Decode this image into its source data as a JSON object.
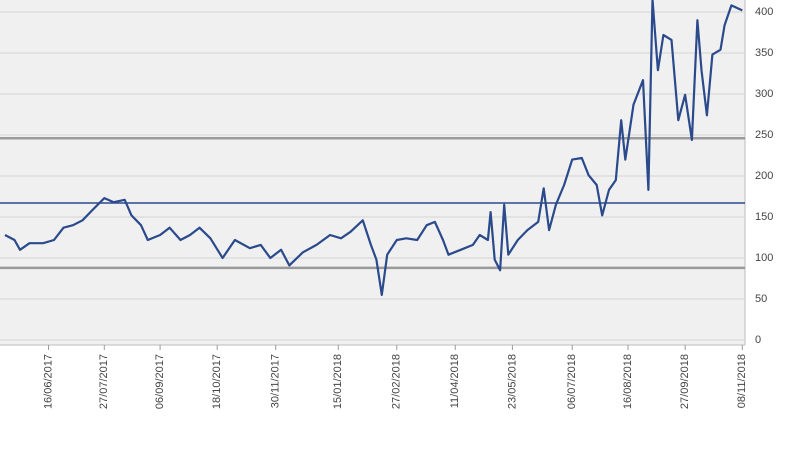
{
  "chart_data": {
    "type": "line",
    "x": [
      "15/05/2017",
      "22/05/2017",
      "26/05/2017",
      "02/06/2017",
      "12/06/2017",
      "20/06/2017",
      "27/06/2017",
      "04/07/2017",
      "11/07/2017",
      "18/07/2017",
      "27/07/2017",
      "03/08/2017",
      "11/08/2017",
      "16/08/2017",
      "23/08/2017",
      "28/08/2017",
      "06/09/2017",
      "13/09/2017",
      "21/09/2017",
      "28/09/2017",
      "05/10/2017",
      "13/10/2017",
      "22/10/2017",
      "31/10/2017",
      "11/11/2017",
      "19/11/2017",
      "26/11/2017",
      "04/12/2017",
      "10/12/2017",
      "20/12/2017",
      "30/12/2017",
      "09/01/2018",
      "17/01/2018",
      "24/01/2018",
      "02/02/2018",
      "08/02/2018",
      "12/02/2018",
      "16/02/2018",
      "20/02/2018",
      "27/02/2018",
      "06/03/2018",
      "14/03/2018",
      "21/03/2018",
      "27/03/2018",
      "02/04/2018",
      "06/04/2018",
      "15/04/2018",
      "24/04/2018",
      "29/04/2018",
      "05/05/2018",
      "07/05/2018",
      "10/05/2018",
      "14/05/2018",
      "17/05/2018",
      "20/05/2018",
      "27/05/2018",
      "03/06/2018",
      "11/06/2018",
      "15/06/2018",
      "19/06/2018",
      "24/06/2018",
      "30/06/2018",
      "06/07/2018",
      "13/07/2018",
      "18/07/2018",
      "24/07/2018",
      "28/07/2018",
      "02/08/2018",
      "07/08/2018",
      "11/08/2018",
      "14/08/2018",
      "20/08/2018",
      "27/08/2018",
      "31/08/2018",
      "03/09/2018",
      "07/09/2018",
      "11/09/2018",
      "17/09/2018",
      "22/09/2018",
      "27/09/2018",
      "02/10/2018",
      "06/10/2018",
      "09/10/2018",
      "13/10/2018",
      "17/10/2018",
      "23/10/2018",
      "26/10/2018",
      "31/10/2018",
      "08/11/2018"
    ],
    "values": [
      128,
      122,
      110,
      118,
      118,
      122,
      137,
      140,
      146,
      158,
      173,
      168,
      171,
      152,
      140,
      122,
      128,
      137,
      122,
      128,
      137,
      124,
      100,
      122,
      112,
      116,
      100,
      110,
      91,
      107,
      116,
      128,
      124,
      132,
      146,
      116,
      98,
      55,
      104,
      122,
      124,
      122,
      140,
      144,
      122,
      104,
      110,
      116,
      128,
      122,
      156,
      98,
      85,
      165,
      104,
      122,
      134,
      144,
      185,
      134,
      165,
      189,
      220,
      222,
      201,
      189,
      152,
      183,
      195,
      268,
      220,
      287,
      317,
      183,
      415,
      329,
      372,
      366,
      268,
      299,
      244,
      390,
      329,
      274,
      348,
      354,
      384,
      408,
      402
    ],
    "color": "#2a4a8c",
    "xlim": [
      "15/05/2017",
      "10/11/2018"
    ],
    "xticks": [
      "16/06/2017",
      "27/07/2017",
      "06/09/2017",
      "18/10/2017",
      "30/11/2017",
      "15/01/2018",
      "27/02/2018",
      "11/04/2018",
      "23/05/2018",
      "06/07/2018",
      "16/08/2018",
      "27/09/2018",
      "08/11/2018"
    ],
    "ylim": [
      0,
      400
    ],
    "yticks": [
      0,
      50,
      100,
      150,
      200,
      250,
      300,
      350,
      400
    ],
    "grid": true,
    "reference_lines": [
      {
        "value": 88,
        "color": "#9a9a9a"
      },
      {
        "value": 167,
        "color": "#2a4a8c"
      },
      {
        "value": 246,
        "color": "#9a9a9a"
      }
    ]
  }
}
